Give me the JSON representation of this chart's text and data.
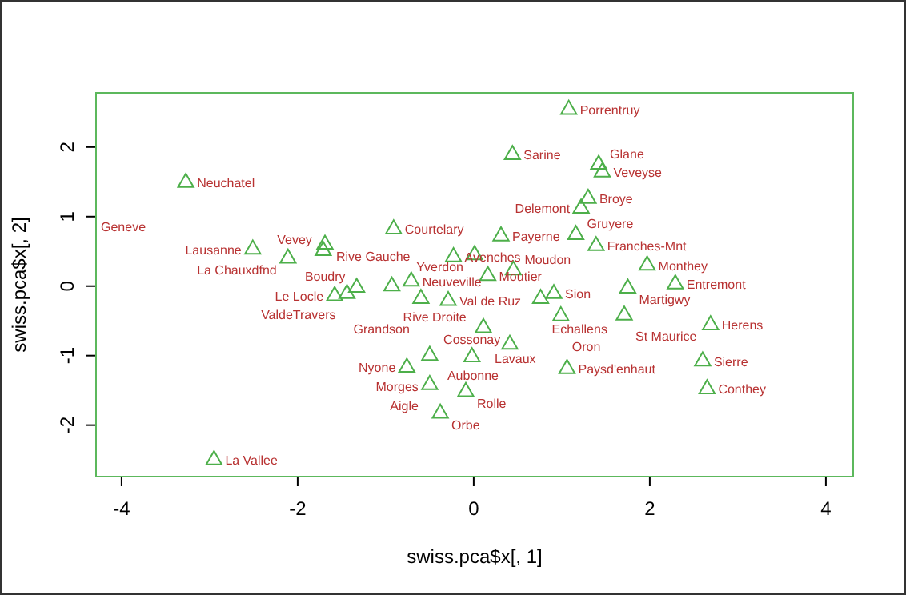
{
  "chart_data": {
    "type": "scatter",
    "xlabel": "swiss.pca$x[, 1]",
    "ylabel": "swiss.pca$x[, 2]",
    "xlim": [
      -4.29,
      4.31
    ],
    "ylim": [
      -2.74,
      2.78
    ],
    "xticks": [
      -4,
      -2,
      0,
      2,
      4
    ],
    "yticks": [
      -2,
      -1,
      0,
      1,
      2
    ],
    "grid": false,
    "marker": "triangle",
    "series": [
      {
        "color": "#4daf4a",
        "x": [
          -3.27,
          -0.91,
          -2.51,
          -1.69,
          -1.71,
          -2.11,
          -1.58,
          -1.44,
          -1.33,
          -0.93,
          -0.71,
          -0.6,
          -0.29,
          1.08,
          0.44,
          1.42,
          1.46,
          1.3,
          1.22,
          0.31,
          1.16,
          1.39,
          1.97,
          -0.23,
          0.01,
          0.16,
          0.45,
          1.75,
          2.29,
          0.91,
          0.76,
          0.99,
          1.71,
          2.69,
          0.11,
          0.41,
          -0.02,
          -0.5,
          1.06,
          2.6,
          2.65,
          -0.09,
          -0.76,
          -0.5,
          -0.38,
          -2.95
        ],
        "values": [
          1.49,
          0.82,
          0.53,
          0.6,
          0.51,
          0.4,
          -0.14,
          -0.11,
          -0.02,
          0.0,
          0.07,
          -0.18,
          -0.21,
          2.54,
          1.89,
          1.75,
          1.64,
          1.26,
          1.12,
          0.72,
          0.74,
          0.58,
          0.3,
          0.42,
          0.45,
          0.15,
          0.23,
          -0.03,
          0.03,
          -0.11,
          -0.18,
          -0.43,
          -0.42,
          -0.56,
          -0.6,
          -0.84,
          -1.02,
          -1.0,
          -1.19,
          -1.08,
          -1.48,
          -1.52,
          -1.17,
          -1.42,
          -1.83,
          -2.5
        ]
      }
    ],
    "annotations": [
      {
        "text": "Neuchatel",
        "x": -3.27,
        "y": 1.49
      },
      {
        "text": "Courtelary",
        "x": -0.91,
        "y": 0.82
      },
      {
        "text": "Lausanne",
        "x": -2.51,
        "y": 0.53
      },
      {
        "text": "Rive Gauche",
        "x": -1.69,
        "y": 0.6
      },
      {
        "text": "Vevey",
        "x": -1.71,
        "y": 0.51
      },
      {
        "text": "La Chauxdfnd",
        "x": -2.11,
        "y": 0.4
      },
      {
        "text": "Le Locle",
        "x": -1.58,
        "y": -0.14
      },
      {
        "text": "ValdeTravers",
        "x": -1.44,
        "y": -0.11
      },
      {
        "text": "Boudry",
        "x": -1.33,
        "y": -0.02
      },
      {
        "text": "Rive Droite",
        "x": -0.93,
        "y": 0.0
      },
      {
        "text": "Neuveville",
        "x": -0.71,
        "y": 0.07
      },
      {
        "text": "Grandson",
        "x": -0.6,
        "y": -0.18
      },
      {
        "text": "Val de Ruz",
        "x": -0.29,
        "y": -0.21
      },
      {
        "text": "Porrentruy",
        "x": 1.08,
        "y": 2.54
      },
      {
        "text": "Sarine",
        "x": 0.44,
        "y": 1.89
      },
      {
        "text": "Glane",
        "x": 1.42,
        "y": 1.75
      },
      {
        "text": "Veveyse",
        "x": 1.46,
        "y": 1.64
      },
      {
        "text": "Broye",
        "x": 1.3,
        "y": 1.26
      },
      {
        "text": "Delemont",
        "x": 1.22,
        "y": 1.12
      },
      {
        "text": "Payerne",
        "x": 0.31,
        "y": 0.72
      },
      {
        "text": "Gruyere",
        "x": 1.16,
        "y": 0.74
      },
      {
        "text": "Franches-Mnt",
        "x": 1.39,
        "y": 0.58
      },
      {
        "text": "Monthey",
        "x": 1.97,
        "y": 0.3
      },
      {
        "text": "Avenches",
        "x": -0.23,
        "y": 0.42
      },
      {
        "text": "Yverdon",
        "x": 0.01,
        "y": 0.45
      },
      {
        "text": "Moutier",
        "x": 0.16,
        "y": 0.15
      },
      {
        "text": "Moudon",
        "x": 0.45,
        "y": 0.23
      },
      {
        "text": "Martigwy",
        "x": 1.75,
        "y": -0.03
      },
      {
        "text": "Entremont",
        "x": 2.29,
        "y": 0.03
      },
      {
        "text": "Sion",
        "x": 0.91,
        "y": -0.11
      },
      {
        "text": "Echallens",
        "x": 0.76,
        "y": -0.18
      },
      {
        "text": "Oron",
        "x": 0.99,
        "y": -0.43
      },
      {
        "text": "St Maurice",
        "x": 1.71,
        "y": -0.42
      },
      {
        "text": "Herens",
        "x": 2.69,
        "y": -0.56
      },
      {
        "text": "Lavaux",
        "x": 0.11,
        "y": -0.6
      },
      {
        "text": "Aubonne",
        "x": 0.41,
        "y": -0.84
      },
      {
        "text": "Cossonay",
        "x": -0.02,
        "y": -1.02
      },
      {
        "text": "Morges",
        "x": -0.5,
        "y": -1.0
      },
      {
        "text": "Paysd'enhaut",
        "x": 1.06,
        "y": -1.19
      },
      {
        "text": "Sierre",
        "x": 2.6,
        "y": -1.08
      },
      {
        "text": "Conthey",
        "x": 2.65,
        "y": -1.48
      },
      {
        "text": "Rolle",
        "x": -0.09,
        "y": -1.52
      },
      {
        "text": "Nyone",
        "x": -0.76,
        "y": -1.17
      },
      {
        "text": "Aigle",
        "x": -0.5,
        "y": -1.42
      },
      {
        "text": "Orbe",
        "x": -0.38,
        "y": -1.83
      },
      {
        "text": "La Vallee",
        "x": -2.95,
        "y": -2.5
      },
      "Geneve"
    ]
  }
}
